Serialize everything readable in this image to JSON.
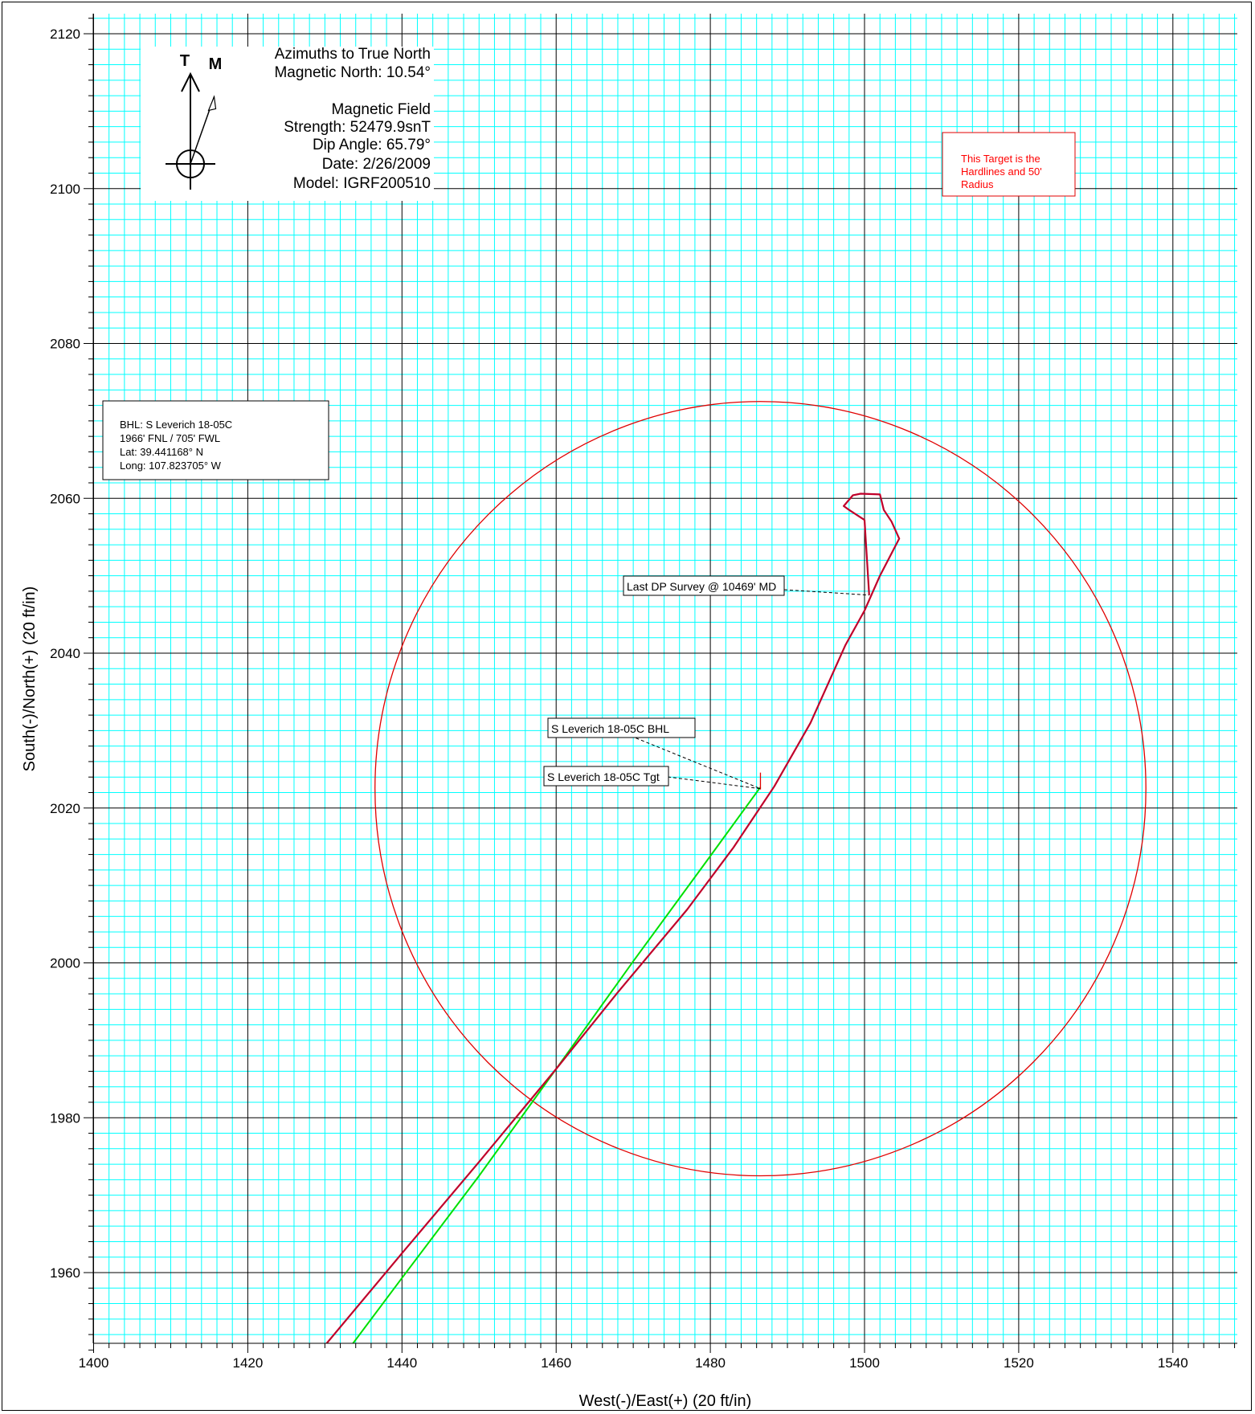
{
  "chart_data": {
    "type": "line",
    "xlabel": "West(-)/East(+) (20 ft/in)",
    "ylabel": "South(-)/North(+) (20 ft/in)",
    "xlim": [
      1400,
      1548
    ],
    "ylim": [
      1950,
      2122
    ],
    "x_ticks": [
      1400,
      1420,
      1440,
      1460,
      1480,
      1500,
      1520,
      1540
    ],
    "y_ticks": [
      1960,
      1980,
      2000,
      2020,
      2040,
      2060,
      2080,
      2100,
      2120
    ],
    "x_tick_labels": [
      "1400",
      "1420",
      "1440",
      "1460",
      "1480",
      "1500",
      "1520",
      "1540"
    ],
    "y_tick_labels": [
      "1960",
      "1980",
      "2000",
      "2020",
      "2040",
      "2060",
      "2080",
      "2100",
      "2120"
    ],
    "grid": true,
    "colors": {
      "minor_grid": "#00FFFF",
      "major_grid": "#000000",
      "actual_path": "#C0002A",
      "target_circle": "#E00000",
      "plan_path": "#00E000",
      "target_note": "#FF0000"
    },
    "series": [
      {
        "values_xy": [
          [
            1429.5,
            1950
          ],
          [
            1440,
            1962.5
          ],
          [
            1450,
            1974.3
          ],
          [
            1460,
            1986.3
          ],
          [
            1468,
            1996.2
          ],
          [
            1477,
            2006.9
          ],
          [
            1483,
            2014.9
          ],
          [
            1488.3,
            2022.8
          ],
          [
            1493,
            2031
          ],
          [
            1497.5,
            2041
          ],
          [
            1500,
            2045.5
          ],
          [
            1502,
            2050
          ],
          [
            1504.5,
            2054.8
          ],
          [
            1503.5,
            2057
          ],
          [
            1502.5,
            2058.5
          ],
          [
            1502,
            2060.5
          ],
          [
            1499.5,
            2060.6
          ],
          [
            1498.5,
            2060.4
          ],
          [
            1497.3,
            2059
          ],
          [
            1498,
            2058.5
          ],
          [
            1500,
            2057.2
          ],
          [
            1500.6,
            2047.5
          ]
        ]
      },
      {
        "values_xy": [
          [
            1433,
            1950
          ],
          [
            1440,
            1959.3
          ],
          [
            1450,
            1972.5
          ],
          [
            1460,
            1986.3
          ],
          [
            1470,
            2000.2
          ],
          [
            1480,
            2013.8
          ],
          [
            1486.5,
            2022.7
          ]
        ]
      }
    ],
    "target": {
      "center": [
        1486.5,
        2022.5
      ],
      "radius": 50
    },
    "annotations": {
      "last_survey": "Last DP Survey @ 10469' MD",
      "bhl": "S Leverich 18-05C BHL",
      "tgt": "S Leverich 18-05C Tgt",
      "target_note": [
        "This Target is the",
        "Hardlines and 50'",
        "Radius"
      ],
      "bhl_info": [
        "BHL: S Leverich 18-05C",
        "1966' FNL / 705' FWL",
        "Lat: 39.441168° N",
        "Long: 107.823705° W"
      ]
    },
    "north_arrow": {
      "true_label": "T",
      "magnetic_label": "M",
      "magnetic_declination_deg": 10.54
    },
    "magnetic_info": [
      "Azimuths to True North",
      "Magnetic North: 10.54°",
      "",
      "Magnetic Field",
      "Strength: 52479.9snT",
      "Dip Angle: 65.79°",
      "Date: 2/26/2009",
      "Model: IGRF200510"
    ]
  }
}
